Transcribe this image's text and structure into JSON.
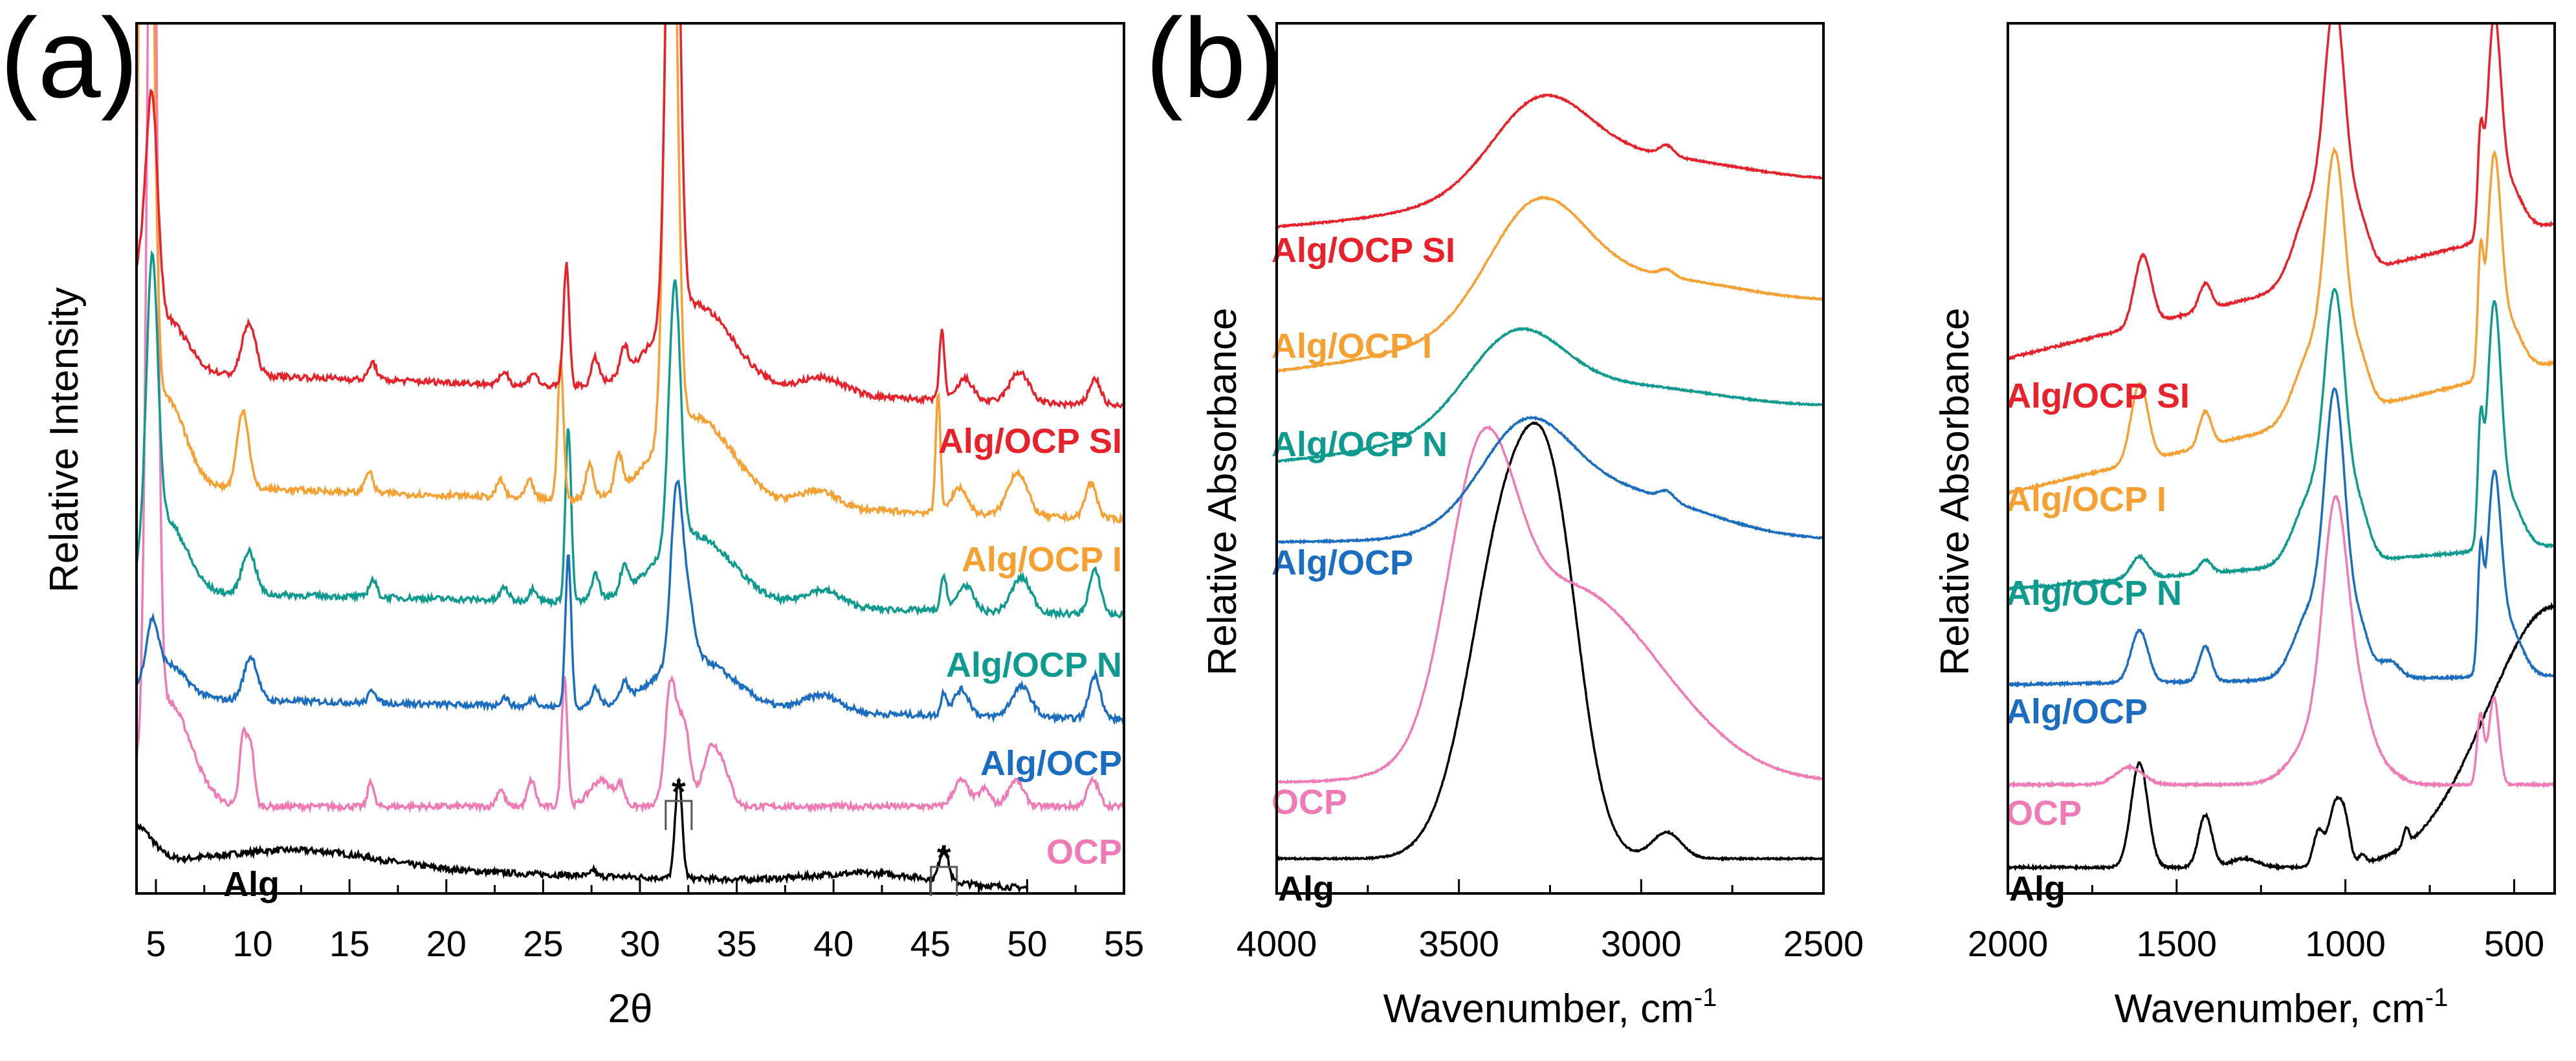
{
  "colors": {
    "Alg": "#000000",
    "OCP": "#f07ab5",
    "Alg/OCP": "#1a6dc0",
    "Alg/OCP N": "#0e9a8e",
    "Alg/OCP I": "#f5a031",
    "Alg/OCP SI": "#e8212a"
  },
  "chart_data": [
    {
      "panel_label": "(a)",
      "type": "line",
      "xlabel": "2θ",
      "ylabel": "Relative Intensity",
      "xlim": [
        4,
        55
      ],
      "ylim": [
        0,
        100
      ],
      "xticks": [
        "5",
        "10",
        "15",
        "20",
        "25",
        "30",
        "35",
        "40",
        "45",
        "50",
        "55"
      ],
      "grid": false,
      "annotations": [
        "*",
        "*"
      ],
      "annotation_positions_x": [
        32,
        45.7
      ],
      "series": [
        {
          "name": "Alg",
          "x_range": [
            4,
            50
          ],
          "baseline": [
            3.5,
            0.3
          ],
          "peaks": [
            [
              4,
              4,
              0.8
            ],
            [
              12.5,
              2,
              4
            ],
            [
              42,
              1.2,
              3
            ],
            [
              32,
              11.5,
              0.18
            ],
            [
              45.7,
              4,
              0.22
            ],
            [
              27.6,
              0.8,
              0.1
            ]
          ]
        },
        {
          "name": "OCP",
          "x_range": [
            4,
            55
          ],
          "baseline": [
            10,
            10
          ],
          "peaks": [
            [
              4.8,
              120,
              0.25
            ],
            [
              5.6,
              12,
              1.2
            ],
            [
              9.5,
              8,
              0.18
            ],
            [
              9.9,
              7,
              0.18
            ],
            [
              16.1,
              3,
              0.15
            ],
            [
              22.8,
              2,
              0.2
            ],
            [
              24.4,
              3,
              0.2
            ],
            [
              26.1,
              15,
              0.15
            ],
            [
              28,
              3,
              0.6
            ],
            [
              29,
              2,
              0.2
            ],
            [
              31.6,
              14,
              0.3
            ],
            [
              32.3,
              9,
              0.3
            ],
            [
              33.6,
              6,
              0.4
            ],
            [
              34.3,
              4,
              0.4
            ],
            [
              46.6,
              3,
              0.4
            ],
            [
              47.8,
              2,
              0.3
            ],
            [
              49.4,
              3,
              0.4
            ],
            [
              53.4,
              3,
              0.3
            ]
          ]
        },
        {
          "name": "Alg/OCP",
          "x_range": [
            4,
            55
          ],
          "baseline": [
            22.5,
            20
          ],
          "peaks": [
            [
              4.8,
              6,
              0.3
            ],
            [
              5.5,
              4,
              1
            ],
            [
              9.9,
              5,
              0.35
            ],
            [
              16.2,
              1.5,
              0.2
            ],
            [
              23,
              1,
              0.2
            ],
            [
              24.5,
              1,
              0.2
            ],
            [
              26.3,
              17.5,
              0.15
            ],
            [
              27.7,
              2,
              0.2
            ],
            [
              29.2,
              2,
              0.2
            ],
            [
              31.9,
              20,
              0.3
            ],
            [
              32.5,
              6,
              0.3
            ],
            [
              32.8,
              6,
              2
            ],
            [
              39.4,
              2,
              1
            ],
            [
              45.7,
              2.5,
              0.15
            ],
            [
              46.6,
              3,
              0.4
            ],
            [
              49.7,
              3.5,
              0.5
            ],
            [
              53.5,
              5,
              0.3
            ]
          ]
        },
        {
          "name": "Alg/OCP N",
          "x_range": [
            4,
            55
          ],
          "baseline": [
            34.7,
            32
          ],
          "peaks": [
            [
              4.8,
              33,
              0.3
            ],
            [
              5.6,
              8,
              1
            ],
            [
              9.8,
              5,
              0.35
            ],
            [
              16.2,
              2,
              0.2
            ],
            [
              23,
              1.5,
              0.2
            ],
            [
              24.5,
              1.5,
              0.2
            ],
            [
              26.3,
              20,
              0.15
            ],
            [
              27.7,
              3,
              0.2
            ],
            [
              29.2,
              3,
              0.2
            ],
            [
              31.8,
              30,
              0.3
            ],
            [
              32.8,
              8,
              2
            ],
            [
              39.4,
              2,
              1
            ],
            [
              45.7,
              4,
              0.15
            ],
            [
              46.8,
              3,
              0.4
            ],
            [
              49.7,
              4,
              0.5
            ],
            [
              53.5,
              5,
              0.3
            ]
          ]
        },
        {
          "name": "Alg/OCP I",
          "x_range": [
            4,
            55
          ],
          "baseline": [
            47,
            43
          ],
          "peaks": [
            [
              4.5,
              120,
              0.3
            ],
            [
              5.5,
              10,
              1
            ],
            [
              9.5,
              9,
              0.3
            ],
            [
              16,
              2.5,
              0.2
            ],
            [
              22.8,
              2,
              0.2
            ],
            [
              24.3,
              2,
              0.2
            ],
            [
              25.9,
              16,
              0.15
            ],
            [
              27.4,
              4,
              0.2
            ],
            [
              28.9,
              4,
              0.2
            ],
            [
              31.6,
              80,
              0.3
            ],
            [
              32.8,
              10,
              2
            ],
            [
              39.2,
              2,
              1
            ],
            [
              45.4,
              14,
              0.12
            ],
            [
              46.5,
              3,
              0.4
            ],
            [
              49.5,
              5,
              0.5
            ],
            [
              53.3,
              4,
              0.3
            ]
          ]
        },
        {
          "name": "Alg/OCP SI",
          "x_range": [
            4,
            55
          ],
          "baseline": [
            60,
            56
          ],
          "peaks": [
            [
              4.1,
              10,
              0.5
            ],
            [
              4.8,
              24,
              0.3
            ],
            [
              5.6,
              6,
              1
            ],
            [
              9.8,
              6,
              0.35
            ],
            [
              16.2,
              2,
              0.2
            ],
            [
              23,
              1.5,
              0.2
            ],
            [
              24.5,
              1.5,
              0.2
            ],
            [
              26.2,
              14,
              0.15
            ],
            [
              27.7,
              3,
              0.2
            ],
            [
              29.2,
              3,
              0.2
            ],
            [
              31.7,
              80,
              0.3
            ],
            [
              32.8,
              10,
              2
            ],
            [
              39.4,
              2,
              1.2
            ],
            [
              45.6,
              8,
              0.13
            ],
            [
              46.8,
              2.5,
              0.4
            ],
            [
              49.6,
              3.5,
              0.5
            ],
            [
              53.5,
              3,
              0.3
            ]
          ]
        }
      ]
    },
    {
      "panel_label": "(b)",
      "type": "line",
      "xlabel": "Wavenumber, cm",
      "xlabel_sup": "-1",
      "ylabel": "Relative Absorbance",
      "xlim": [
        4000,
        2500
      ],
      "ylim": [
        0,
        100
      ],
      "xticks": [
        "4000",
        "3500",
        "3000",
        "2500"
      ],
      "grid": false,
      "series": [
        {
          "name": "Alg",
          "baseline": [
            4,
            4
          ],
          "peaks": [
            [
              3350,
              42,
              110
            ],
            [
              3230,
              20,
              70
            ],
            [
              2930,
              3,
              40
            ]
          ]
        },
        {
          "name": "OCP",
          "baseline": [
            12.8,
            12.8
          ],
          "peaks": [
            [
              3440,
              28,
              90
            ],
            [
              3250,
              18,
              200
            ],
            [
              3000,
              8,
              200
            ]
          ]
        },
        {
          "name": "Alg/OCP",
          "baseline": [
            40.4,
            40.5
          ],
          "peaks": [
            [
              3320,
              10,
              120
            ],
            [
              3100,
              6,
              250
            ],
            [
              2930,
              1,
              20
            ]
          ]
        },
        {
          "name": "Alg/OCP N",
          "baseline": [
            49.6,
            55.5
          ],
          "peaks": [
            [
              3350,
              9,
              130
            ],
            [
              3100,
              5,
              300
            ]
          ]
        },
        {
          "name": "Alg/OCP I",
          "baseline": [
            60,
            67.2
          ],
          "peaks": [
            [
              3290,
              12,
              130
            ],
            [
              3050,
              6,
              300
            ],
            [
              2930,
              0.8,
              20
            ]
          ]
        },
        {
          "name": "Alg/OCP SI",
          "baseline": [
            76.6,
            81.3
          ],
          "peaks": [
            [
              3280,
              9,
              130
            ],
            [
              3050,
              5,
              300
            ],
            [
              2930,
              1.2,
              20
            ]
          ]
        }
      ]
    },
    {
      "type": "line",
      "xlabel": "Wavenumber, cm",
      "xlabel_sup": "-1",
      "ylabel": "Relative Absorbance",
      "xlim": [
        2000,
        380
      ],
      "ylim": [
        0,
        100
      ],
      "xticks": [
        "2000",
        "1500",
        "1000",
        "500"
      ],
      "grid": false,
      "series": [
        {
          "name": "Alg",
          "baseline": [
            3,
            3
          ],
          "peaks": [
            [
              1610,
              12,
              25
            ],
            [
              1415,
              6,
              20
            ],
            [
              1300,
              1,
              40
            ],
            [
              1080,
              4,
              15
            ],
            [
              1030,
              7,
              20
            ],
            [
              1000,
              4,
              15
            ],
            [
              950,
              1,
              10
            ],
            [
              820,
              2,
              8
            ],
            [
              380,
              30,
              200
            ]
          ]
        },
        {
          "name": "OCP",
          "baseline": [
            12.5,
            12.5
          ],
          "peaks": [
            [
              1640,
              2,
              40
            ],
            [
              1050,
              8,
              80
            ],
            [
              1030,
              24,
              35
            ],
            [
              960,
              6,
              40
            ],
            [
              870,
              1,
              40
            ],
            [
              600,
              8,
              10
            ],
            [
              560,
              10,
              15
            ]
          ]
        },
        {
          "name": "Alg/OCP",
          "baseline": [
            24,
            25
          ],
          "peaks": [
            [
              1610,
              6,
              25
            ],
            [
              1415,
              4,
              18
            ],
            [
              1100,
              8,
              50
            ],
            [
              1030,
              30,
              30
            ],
            [
              960,
              6,
              30
            ],
            [
              870,
              2,
              30
            ],
            [
              600,
              12,
              8
            ],
            [
              560,
              20,
              20
            ],
            [
              520,
              6,
              40
            ]
          ]
        },
        {
          "name": "Alg/OCP N",
          "baseline": [
            35,
            40
          ],
          "peaks": [
            [
              1610,
              2.5,
              25
            ],
            [
              1415,
              1.5,
              18
            ],
            [
              1100,
              8,
              50
            ],
            [
              1030,
              28,
              30
            ],
            [
              960,
              6,
              30
            ],
            [
              600,
              12,
              8
            ],
            [
              560,
              25,
              20
            ],
            [
              520,
              6,
              40
            ]
          ]
        },
        {
          "name": "Alg/OCP I",
          "baseline": [
            46,
            61
          ],
          "peaks": [
            [
              1610,
              9,
              25
            ],
            [
              1415,
              4,
              18
            ],
            [
              1100,
              8,
              50
            ],
            [
              1030,
              27,
              30
            ],
            [
              960,
              6,
              30
            ],
            [
              600,
              12,
              8
            ],
            [
              560,
              22,
              20
            ],
            [
              520,
              6,
              40
            ]
          ]
        },
        {
          "name": "Alg/OCP SI",
          "baseline": [
            61.5,
            77
          ],
          "peaks": [
            [
              1600,
              8,
              25
            ],
            [
              1415,
              3,
              18
            ],
            [
              1100,
              9,
              50
            ],
            [
              1030,
              28,
              30
            ],
            [
              960,
              6,
              30
            ],
            [
              600,
              10,
              8
            ],
            [
              560,
              22,
              20
            ],
            [
              520,
              6,
              40
            ]
          ]
        }
      ]
    }
  ]
}
